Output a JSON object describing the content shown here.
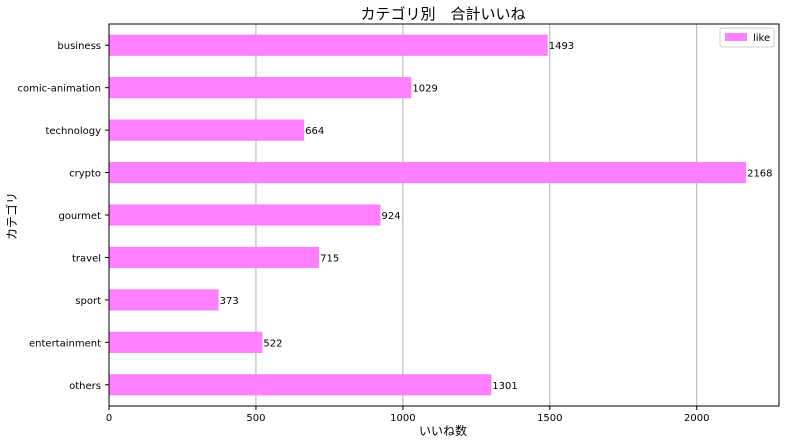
{
  "chart_data": {
    "type": "bar",
    "orientation": "horizontal",
    "title": "カテゴリ別　合計いいね",
    "xlabel": "いいね数",
    "ylabel": "カテゴリ",
    "categories": [
      "business",
      "comic-animation",
      "technology",
      "crypto",
      "gourmet",
      "travel",
      "sport",
      "entertainment",
      "others"
    ],
    "series": [
      {
        "name": "like",
        "color": "#ff80ff",
        "values": [
          1493,
          1029,
          664,
          2168,
          924,
          715,
          373,
          522,
          1301
        ]
      }
    ],
    "xlim": [
      0,
      2280
    ],
    "xticks": [
      0,
      500,
      1000,
      1500,
      2000
    ],
    "grid": "x",
    "legend_position": "top-right"
  }
}
